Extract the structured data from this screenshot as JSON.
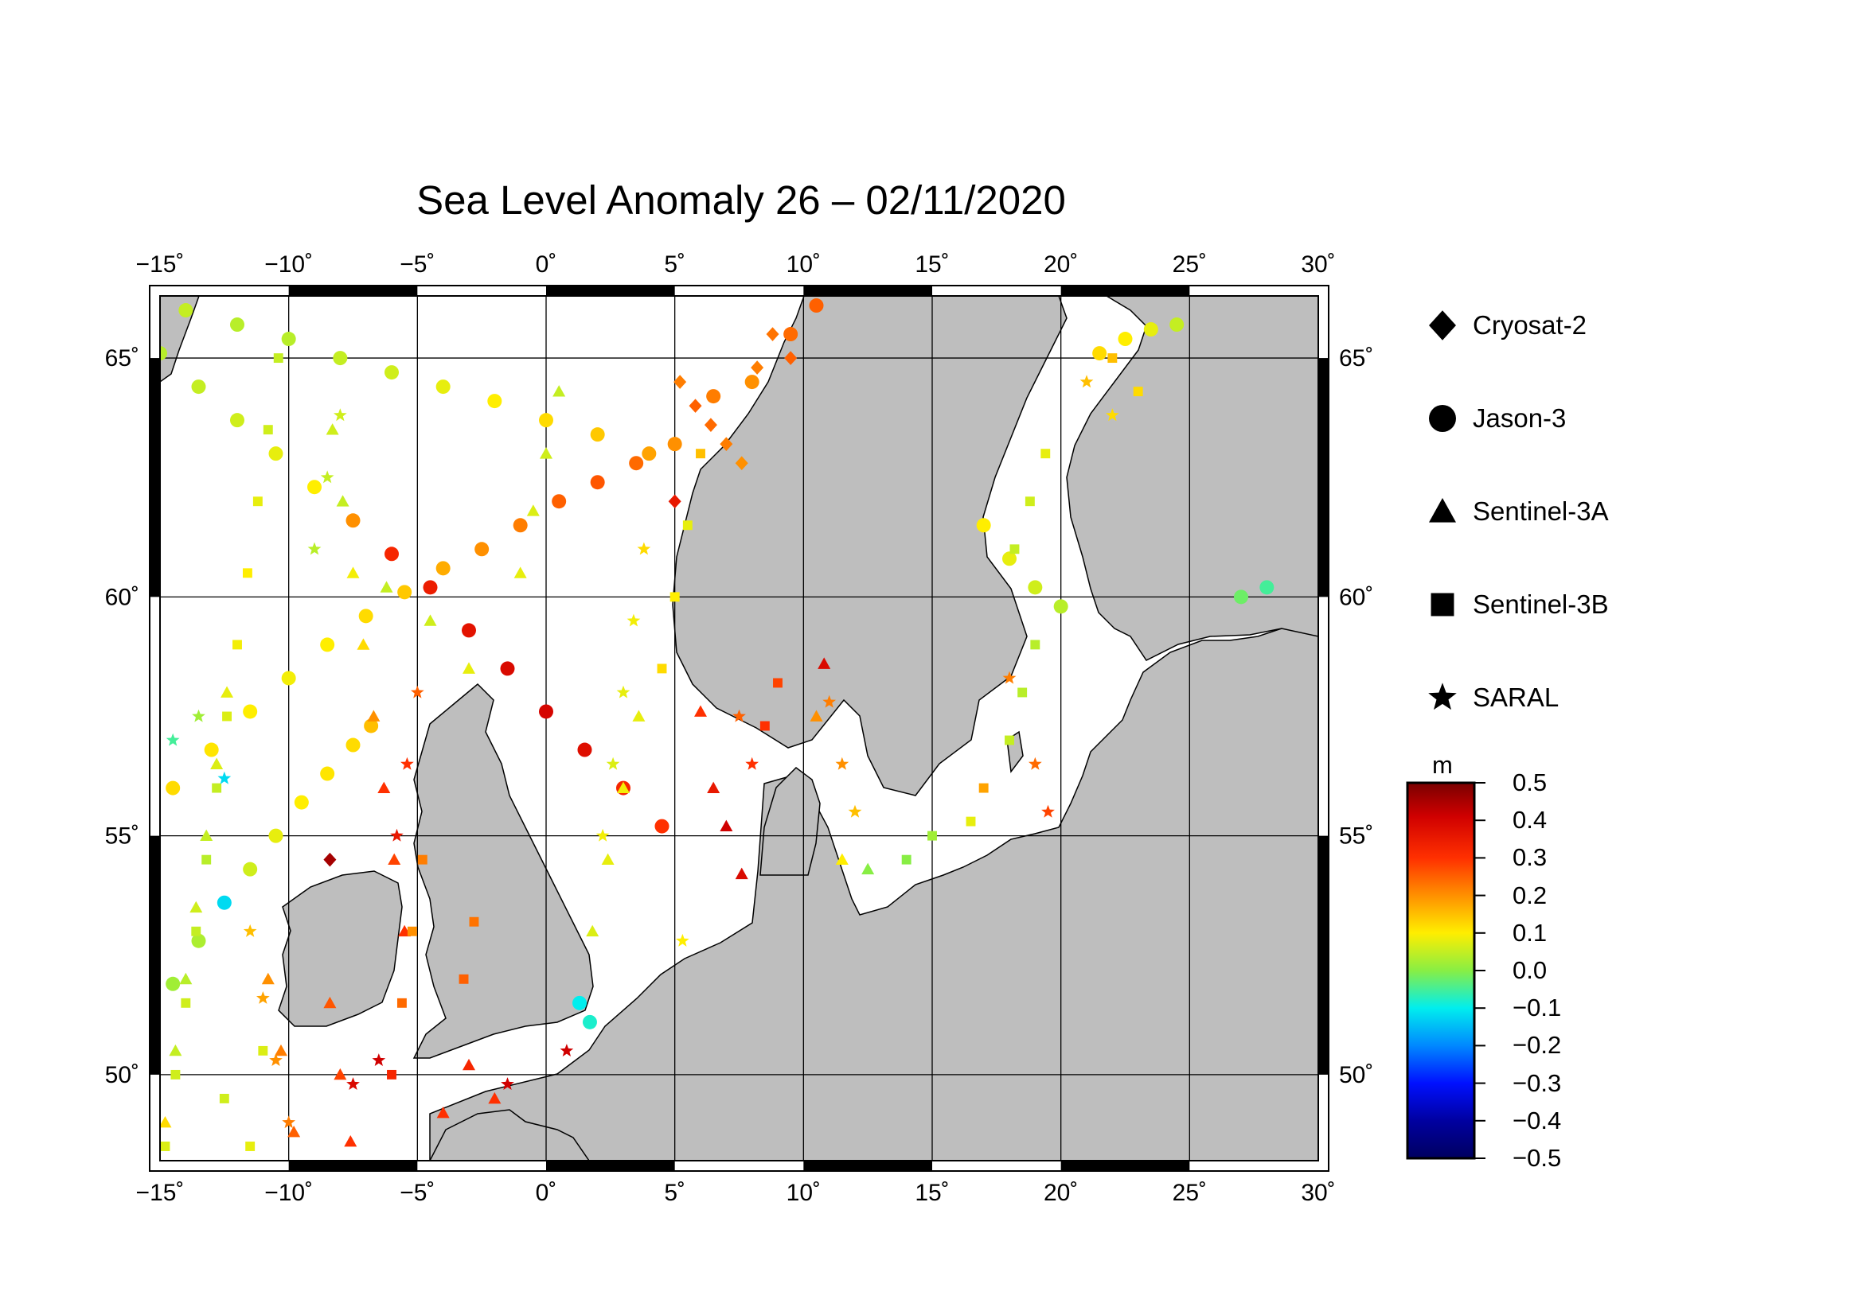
{
  "title": "Sea Level Anomaly 26 – 02/11/2020",
  "map": {
    "lon_range": [
      -15,
      30
    ],
    "lat_range": [
      48.2,
      66.3
    ],
    "lon_ticks": [
      -15,
      -10,
      -5,
      0,
      5,
      10,
      15,
      20,
      25,
      30
    ],
    "lat_ticks": [
      50,
      55,
      60,
      65
    ],
    "lon_labels": [
      "−15˚",
      "−10˚",
      "−5˚",
      "0˚",
      "5˚",
      "10˚",
      "15˚",
      "20˚",
      "25˚",
      "30˚"
    ],
    "lat_labels": [
      "50˚",
      "55˚",
      "60˚",
      "65˚"
    ],
    "land_color": "#bebebe",
    "sea_color": "#ffffff"
  },
  "legend": {
    "items": [
      {
        "label": "Cryosat-2",
        "symbol": "diamond-icon"
      },
      {
        "label": "Jason-3",
        "symbol": "circle-icon"
      },
      {
        "label": "Sentinel-3A",
        "symbol": "triangle-icon"
      },
      {
        "label": "Sentinel-3B",
        "symbol": "square-icon"
      },
      {
        "label": "SARAL",
        "symbol": "star-icon"
      }
    ]
  },
  "colorbar": {
    "unit": "m",
    "min": -0.5,
    "max": 0.5,
    "labels": [
      "0.5",
      "0.4",
      "0.3",
      "0.2",
      "0.1",
      "0.0",
      "−0.1",
      "−0.2",
      "−0.3",
      "−0.4",
      "−0.5"
    ],
    "colors": [
      "#7a0000",
      "#d00000",
      "#ff3000",
      "#ff9000",
      "#ffee00",
      "#88ee44",
      "#00eeee",
      "#0088ff",
      "#0010ff",
      "#0000a0",
      "#000060"
    ]
  },
  "chart_data": {
    "type": "scatter",
    "title": "Sea Level Anomaly 26 – 02/11/2020",
    "xlabel": "",
    "ylabel": "",
    "xlim": [
      -15,
      30
    ],
    "ylim": [
      48.2,
      66.3
    ],
    "colorbar_unit": "m",
    "clim": [
      -0.5,
      0.5
    ],
    "series": [
      {
        "name": "Jason-3",
        "marker": "circle",
        "points": [
          [
            -14.5,
            51.9,
            0.02
          ],
          [
            -13.5,
            52.8,
            0.03
          ],
          [
            -12.5,
            53.6,
            -0.12
          ],
          [
            -11.5,
            54.3,
            0.06
          ],
          [
            -10.5,
            55.0,
            0.08
          ],
          [
            -9.5,
            55.7,
            0.1
          ],
          [
            -8.5,
            56.3,
            0.11
          ],
          [
            -7.5,
            56.9,
            0.12
          ],
          [
            -6.8,
            57.3,
            0.15
          ],
          [
            -14.5,
            56.0,
            0.12
          ],
          [
            -13.0,
            56.8,
            0.11
          ],
          [
            -11.5,
            57.6,
            0.1
          ],
          [
            -10.0,
            58.3,
            0.09
          ],
          [
            -8.5,
            59.0,
            0.1
          ],
          [
            -7.0,
            59.6,
            0.12
          ],
          [
            -5.5,
            60.1,
            0.14
          ],
          [
            -4.0,
            60.6,
            0.17
          ],
          [
            -2.5,
            61.0,
            0.2
          ],
          [
            -1.0,
            61.5,
            0.22
          ],
          [
            0.5,
            62.0,
            0.25
          ],
          [
            2.0,
            62.4,
            0.26
          ],
          [
            3.5,
            62.8,
            0.24
          ],
          [
            5.0,
            63.2,
            0.2
          ],
          [
            -15.0,
            65.1,
            0.04
          ],
          [
            -13.5,
            64.4,
            0.05
          ],
          [
            -12.0,
            63.7,
            0.06
          ],
          [
            -10.5,
            63.0,
            0.08
          ],
          [
            -9.0,
            62.3,
            0.1
          ],
          [
            -7.5,
            61.6,
            0.2
          ],
          [
            -6.0,
            60.9,
            0.32
          ],
          [
            -4.5,
            60.2,
            0.34
          ],
          [
            -3.0,
            59.3,
            0.36
          ],
          [
            -1.5,
            58.5,
            0.38
          ],
          [
            0.0,
            57.6,
            0.39
          ],
          [
            1.5,
            56.8,
            0.37
          ],
          [
            3.0,
            56.0,
            0.32
          ],
          [
            4.5,
            55.2,
            0.3
          ],
          [
            -14.0,
            66.0,
            0.05
          ],
          [
            -12.0,
            65.7,
            0.04
          ],
          [
            -10.0,
            65.4,
            0.04
          ],
          [
            -8.0,
            65.0,
            0.05
          ],
          [
            -6.0,
            64.7,
            0.06
          ],
          [
            -4.0,
            64.4,
            0.08
          ],
          [
            -2.0,
            64.1,
            0.1
          ],
          [
            0.0,
            63.7,
            0.12
          ],
          [
            2.0,
            63.4,
            0.14
          ],
          [
            4.0,
            63.0,
            0.18
          ],
          [
            1.3,
            51.5,
            -0.1
          ],
          [
            1.7,
            51.1,
            -0.08
          ],
          [
            6.5,
            64.2,
            0.22
          ],
          [
            8.0,
            64.5,
            0.2
          ],
          [
            9.5,
            65.5,
            0.24
          ],
          [
            10.5,
            66.1,
            0.25
          ],
          [
            21.5,
            65.1,
            0.12
          ],
          [
            22.5,
            65.4,
            0.1
          ],
          [
            23.5,
            65.6,
            0.08
          ],
          [
            24.5,
            65.7,
            0.05
          ],
          [
            17.0,
            61.5,
            0.1
          ],
          [
            18.0,
            60.8,
            0.08
          ],
          [
            19.0,
            60.2,
            0.06
          ],
          [
            20.0,
            59.8,
            0.04
          ],
          [
            27.0,
            60.0,
            -0.02
          ],
          [
            28.0,
            60.2,
            -0.05
          ]
        ]
      },
      {
        "name": "Sentinel-3A",
        "marker": "triangle",
        "points": [
          [
            -14.8,
            49.0,
            0.12
          ],
          [
            -14.4,
            50.5,
            0.05
          ],
          [
            -14.0,
            52.0,
            0.04
          ],
          [
            -13.6,
            53.5,
            0.06
          ],
          [
            -13.2,
            55.0,
            0.05
          ],
          [
            -12.8,
            56.5,
            0.07
          ],
          [
            -12.4,
            58.0,
            0.08
          ],
          [
            -9.8,
            48.8,
            0.25
          ],
          [
            -10.3,
            50.5,
            0.22
          ],
          [
            -10.8,
            52.0,
            0.2
          ],
          [
            -7.6,
            48.6,
            0.3
          ],
          [
            -8.0,
            50.0,
            0.28
          ],
          [
            -8.4,
            51.5,
            0.26
          ],
          [
            -5.5,
            53.0,
            0.3
          ],
          [
            -5.9,
            54.5,
            0.28
          ],
          [
            -6.3,
            56.0,
            0.3
          ],
          [
            -6.7,
            57.5,
            0.2
          ],
          [
            -7.1,
            59.0,
            0.12
          ],
          [
            -7.5,
            60.5,
            0.09
          ],
          [
            -7.9,
            62.0,
            0.05
          ],
          [
            -8.3,
            63.5,
            0.06
          ],
          [
            -2.0,
            49.5,
            0.3
          ],
          [
            -1.0,
            60.5,
            0.08
          ],
          [
            -0.5,
            61.8,
            0.07
          ],
          [
            0.0,
            63.0,
            0.06
          ],
          [
            0.5,
            64.3,
            0.05
          ],
          [
            1.8,
            53.0,
            0.07
          ],
          [
            2.4,
            54.5,
            0.08
          ],
          [
            3.0,
            56.0,
            0.09
          ],
          [
            3.6,
            57.5,
            0.08
          ],
          [
            6.0,
            57.6,
            0.3
          ],
          [
            6.5,
            56.0,
            0.35
          ],
          [
            7.0,
            55.2,
            0.4
          ],
          [
            7.6,
            54.2,
            0.38
          ],
          [
            10.8,
            58.6,
            0.38
          ],
          [
            10.5,
            57.5,
            0.2
          ],
          [
            11.5,
            54.5,
            0.1
          ],
          [
            12.5,
            54.3,
            0.0
          ],
          [
            -6.2,
            60.2,
            0.05
          ],
          [
            -4.5,
            59.5,
            0.06
          ],
          [
            -3.0,
            58.5,
            0.08
          ],
          [
            -4.0,
            49.2,
            0.3
          ],
          [
            -3.0,
            50.2,
            0.32
          ]
        ]
      },
      {
        "name": "Sentinel-3B",
        "marker": "square",
        "points": [
          [
            -14.8,
            48.5,
            0.07
          ],
          [
            -14.4,
            50.0,
            0.06
          ],
          [
            -14.0,
            51.5,
            0.06
          ],
          [
            -13.6,
            53.0,
            0.05
          ],
          [
            -13.2,
            54.5,
            0.04
          ],
          [
            -12.8,
            56.0,
            0.05
          ],
          [
            -12.4,
            57.5,
            0.07
          ],
          [
            -12.0,
            59.0,
            0.09
          ],
          [
            -11.6,
            60.5,
            0.1
          ],
          [
            -11.2,
            62.0,
            0.08
          ],
          [
            -10.8,
            63.5,
            0.06
          ],
          [
            -10.4,
            65.0,
            0.05
          ],
          [
            -11.5,
            48.5,
            0.08
          ],
          [
            -11.0,
            50.5,
            0.07
          ],
          [
            -12.5,
            49.5,
            0.06
          ],
          [
            -6.0,
            50.0,
            0.32
          ],
          [
            -5.6,
            51.5,
            0.24
          ],
          [
            -5.2,
            53.0,
            0.2
          ],
          [
            -4.8,
            54.5,
            0.22
          ],
          [
            -3.2,
            52.0,
            0.25
          ],
          [
            -2.8,
            53.2,
            0.23
          ],
          [
            4.5,
            58.5,
            0.12
          ],
          [
            5.0,
            60.0,
            0.1
          ],
          [
            5.5,
            61.5,
            0.08
          ],
          [
            6.0,
            63.0,
            0.15
          ],
          [
            8.5,
            57.3,
            0.3
          ],
          [
            9.0,
            58.2,
            0.28
          ],
          [
            14.0,
            54.5,
            0.0
          ],
          [
            15.0,
            55.0,
            0.02
          ],
          [
            16.5,
            55.3,
            0.08
          ],
          [
            17.0,
            56.0,
            0.18
          ],
          [
            18.0,
            57.0,
            0.05
          ],
          [
            18.5,
            58.0,
            0.04
          ],
          [
            19.0,
            59.0,
            0.04
          ],
          [
            18.2,
            61.0,
            0.05
          ],
          [
            18.8,
            62.0,
            0.06
          ],
          [
            19.4,
            63.0,
            0.08
          ],
          [
            22.0,
            65.0,
            0.15
          ],
          [
            23.0,
            64.3,
            0.12
          ]
        ]
      },
      {
        "name": "SARAL",
        "marker": "star",
        "points": [
          [
            -14.5,
            57.0,
            -0.05
          ],
          [
            -13.5,
            57.5,
            0.02
          ],
          [
            -12.5,
            56.2,
            -0.12
          ],
          [
            -10.0,
            49.0,
            0.22
          ],
          [
            -10.5,
            50.3,
            0.2
          ],
          [
            -11.0,
            51.6,
            0.18
          ],
          [
            -11.5,
            53.0,
            0.15
          ],
          [
            -7.5,
            49.8,
            0.38
          ],
          [
            -6.5,
            50.3,
            0.4
          ],
          [
            -1.5,
            49.8,
            0.4
          ],
          [
            0.8,
            50.5,
            0.4
          ],
          [
            -5.8,
            55.0,
            0.35
          ],
          [
            -5.4,
            56.5,
            0.3
          ],
          [
            -5.0,
            58.0,
            0.25
          ],
          [
            -9.0,
            61.0,
            0.04
          ],
          [
            -8.5,
            62.5,
            0.05
          ],
          [
            -8.0,
            63.8,
            0.06
          ],
          [
            2.2,
            55.0,
            0.09
          ],
          [
            2.6,
            56.5,
            0.07
          ],
          [
            3.0,
            58.0,
            0.08
          ],
          [
            3.4,
            59.5,
            0.09
          ],
          [
            3.8,
            61.0,
            0.12
          ],
          [
            5.3,
            52.8,
            0.1
          ],
          [
            7.5,
            57.5,
            0.25
          ],
          [
            8.0,
            56.5,
            0.3
          ],
          [
            11.0,
            57.8,
            0.22
          ],
          [
            11.5,
            56.5,
            0.2
          ],
          [
            12.0,
            55.5,
            0.15
          ],
          [
            18.0,
            58.3,
            0.22
          ],
          [
            19.0,
            56.5,
            0.24
          ],
          [
            19.5,
            55.5,
            0.28
          ],
          [
            21.0,
            64.5,
            0.15
          ],
          [
            22.0,
            63.8,
            0.12
          ]
        ]
      },
      {
        "name": "Cryosat-2",
        "marker": "diamond",
        "points": [
          [
            5.2,
            64.5,
            0.22
          ],
          [
            5.8,
            64.0,
            0.25
          ],
          [
            6.4,
            63.6,
            0.24
          ],
          [
            7.0,
            63.2,
            0.22
          ],
          [
            7.6,
            62.8,
            0.2
          ],
          [
            8.2,
            64.8,
            0.22
          ],
          [
            8.8,
            65.5,
            0.23
          ],
          [
            9.5,
            65.0,
            0.25
          ],
          [
            -8.4,
            54.5,
            0.45
          ],
          [
            5.0,
            62.0,
            0.35
          ]
        ]
      }
    ]
  }
}
